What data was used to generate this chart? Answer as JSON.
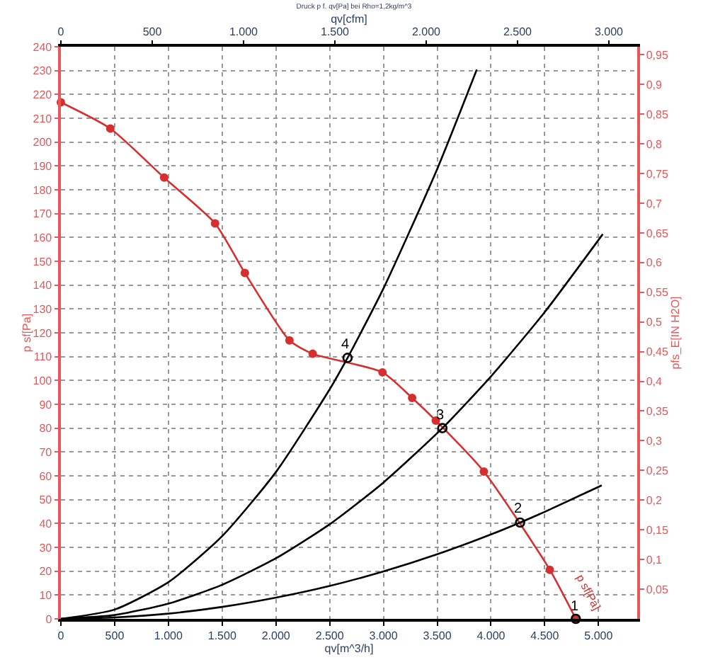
{
  "chart_data": {
    "type": "line",
    "title": "Druck p f. qv[Pa] bei Rho=1,2kg/m^3",
    "xlabel": "qv[m^3/h]",
    "ylabel": "p sf[Pa]",
    "y2label": "pfs_E[IN H2O]",
    "x2label": "qv[cfm]",
    "series": [
      {
        "name": "p sf[Pa]",
        "color": "#d62f2f",
        "marker": "circle",
        "x": [
          0,
          460,
          960,
          1434,
          1711,
          2126,
          2342,
          2991,
          3267,
          3487,
          3934,
          4547,
          4789
        ],
        "values": [
          216.7,
          205.7,
          185.1,
          165.9,
          145.1,
          116.8,
          111.2,
          103.4,
          92.7,
          83.2,
          61.8,
          20.6,
          0
        ]
      },
      {
        "color": "#000000",
        "marker": "none",
        "x": [
          0,
          500,
          1000,
          1500,
          2000,
          2500,
          2666,
          3000,
          3500,
          3868
        ],
        "values": [
          0,
          3.9,
          15.4,
          34.7,
          61.6,
          96.3,
          109.5,
          138.6,
          188.7,
          230.4
        ]
      },
      {
        "color": "#000000",
        "marker": "none",
        "x": [
          0,
          500,
          1000,
          1500,
          2000,
          2500,
          3000,
          3548,
          4000,
          4500,
          5040
        ],
        "values": [
          0,
          1.6,
          6.4,
          14.3,
          25.4,
          39.7,
          57.2,
          80.0,
          101.7,
          128.7,
          161.4
        ]
      },
      {
        "color": "#000000",
        "marker": "none",
        "x": [
          0,
          500,
          1000,
          1500,
          2000,
          2500,
          3000,
          3500,
          4000,
          4271,
          4500,
          5030
        ],
        "values": [
          0,
          0.6,
          2.2,
          5.0,
          8.9,
          13.8,
          19.9,
          27.1,
          35.4,
          40.4,
          44.9,
          56.0
        ]
      },
      {
        "type": "scatter",
        "color": "#000000",
        "marker": "circle",
        "x": [
          4789,
          4271,
          3548,
          2666
        ],
        "values": [
          0,
          40.4,
          80.0,
          109.5
        ]
      }
    ],
    "annotations": [
      {
        "text": "1",
        "x": 4789,
        "y": 0
      },
      {
        "text": "2",
        "x": 4271,
        "y": 40.4
      },
      {
        "text": "3",
        "x": 3548,
        "y": 80.0
      },
      {
        "text": "4",
        "x": 2666,
        "y": 109.5
      }
    ],
    "xlim": [
      0,
      5360
    ],
    "ylim": [
      0,
      240
    ],
    "y2lim": [
      0,
      0.9635
    ],
    "x2lim": [
      0,
      3155
    ],
    "xticks": [
      0,
      500,
      {
        "value": 1000,
        "label": "1.000"
      },
      {
        "value": 1500,
        "label": "1.500"
      },
      {
        "value": 2000,
        "label": "2.000"
      },
      {
        "value": 2500,
        "label": "2.500"
      },
      {
        "value": 3000,
        "label": "3.000"
      },
      {
        "value": 3500,
        "label": "3.500"
      },
      {
        "value": 4000,
        "label": "4.000"
      },
      {
        "value": 4500,
        "label": "4.500"
      },
      {
        "value": 5000,
        "label": "5.000"
      }
    ],
    "x2ticks": [
      0,
      500,
      {
        "value": 1000,
        "label": "1.000"
      },
      {
        "value": 1500,
        "label": "1.500"
      },
      {
        "value": 2000,
        "label": "2.000"
      },
      {
        "value": 2500,
        "label": "2.500"
      },
      {
        "value": 3000,
        "label": "3.000"
      }
    ],
    "yticks": [
      0,
      10,
      20,
      30,
      40,
      50,
      60,
      70,
      80,
      90,
      100,
      110,
      120,
      130,
      140,
      150,
      160,
      170,
      180,
      190,
      200,
      210,
      220,
      230,
      240
    ],
    "y2ticks": [
      {
        "value": 0.05,
        "label": "0,05"
      },
      {
        "value": 0.1,
        "label": "0,1"
      },
      {
        "value": 0.15,
        "label": "0,15"
      },
      {
        "value": 0.2,
        "label": "0,2"
      },
      {
        "value": 0.25,
        "label": "0,25"
      },
      {
        "value": 0.3,
        "label": "0,3"
      },
      {
        "value": 0.35,
        "label": "0,35"
      },
      {
        "value": 0.4,
        "label": "0,4"
      },
      {
        "value": 0.45,
        "label": "0,45"
      },
      {
        "value": 0.5,
        "label": "0,5"
      },
      {
        "value": 0.55,
        "label": "0,55"
      },
      {
        "value": 0.6,
        "label": "0,6"
      },
      {
        "value": 0.65,
        "label": "0,65"
      },
      {
        "value": 0.7,
        "label": "0,7"
      },
      {
        "value": 0.75,
        "label": "0,75"
      },
      {
        "value": 0.8,
        "label": "0,8"
      },
      {
        "value": 0.85,
        "label": "0,85"
      },
      {
        "value": 0.9,
        "label": "0,9"
      },
      {
        "value": 0.95,
        "label": "0,95"
      }
    ],
    "grid": true,
    "legend": false,
    "line_style": "solid"
  }
}
